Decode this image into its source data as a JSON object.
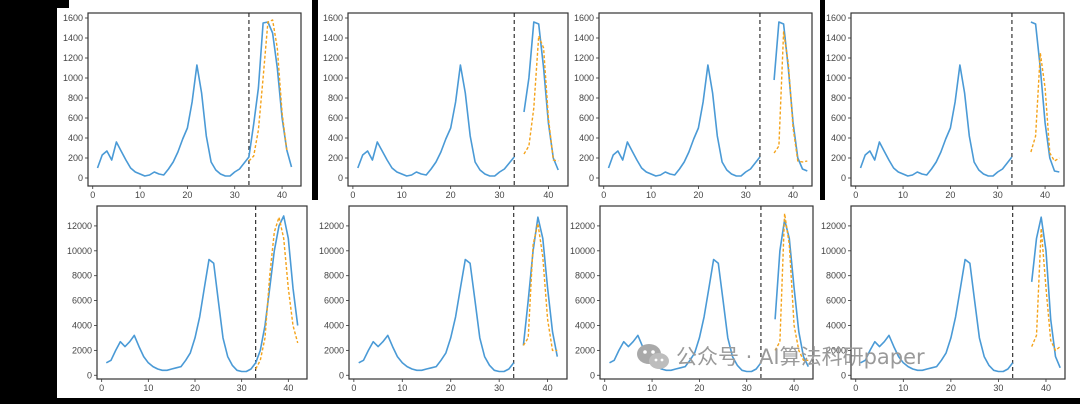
{
  "colors": {
    "actual": "#4a9ad6",
    "forecast": "#f4a31a",
    "cutoff_line": "#222222",
    "frame": "#333333",
    "matte": "#000000"
  },
  "chart_data": [
    {
      "type": "line",
      "panel": "row1-col1",
      "ylim": [
        -80,
        1650
      ],
      "xlim": [
        -1,
        44
      ],
      "xticks": [
        0,
        10,
        20,
        30,
        40
      ],
      "yticks": [
        0,
        200,
        400,
        600,
        800,
        1000,
        1200,
        1400,
        1600
      ],
      "cutoff_x": 33,
      "series": [
        {
          "role": "actual",
          "x": [
            1,
            2,
            3,
            4,
            5,
            6,
            7,
            8,
            9,
            10,
            11,
            12,
            13,
            14,
            15,
            16,
            17,
            18,
            19,
            20,
            21,
            22,
            23,
            24,
            25,
            26,
            27,
            28,
            29,
            30,
            31,
            32,
            33,
            34,
            35,
            36,
            37,
            38,
            39,
            40,
            41,
            42
          ],
          "y": [
            100,
            230,
            270,
            180,
            360,
            270,
            180,
            100,
            60,
            40,
            20,
            30,
            60,
            40,
            30,
            90,
            160,
            260,
            390,
            500,
            760,
            1130,
            850,
            420,
            160,
            80,
            40,
            20,
            20,
            60,
            90,
            150,
            210,
            540,
            900,
            1550,
            1560,
            1450,
            1100,
            600,
            280,
            110
          ]
        },
        {
          "role": "forecast",
          "x": [
            33,
            34,
            35,
            36,
            37,
            38,
            39,
            40,
            41
          ],
          "y": [
            170,
            220,
            480,
            1000,
            1560,
            1580,
            1300,
            650,
            280
          ]
        }
      ]
    },
    {
      "type": "line",
      "panel": "row1-col2",
      "ylim": [
        -80,
        1650
      ],
      "xlim": [
        -1,
        44
      ],
      "xticks": [
        0,
        10,
        20,
        30,
        40
      ],
      "yticks": [
        0,
        200,
        400,
        600,
        800,
        1000,
        1200,
        1400,
        1600
      ],
      "cutoff_x": 33,
      "series": [
        {
          "role": "actual",
          "x": [
            1,
            2,
            3,
            4,
            5,
            6,
            7,
            8,
            9,
            10,
            11,
            12,
            13,
            14,
            15,
            16,
            17,
            18,
            19,
            20,
            21,
            22,
            23,
            24,
            25,
            26,
            27,
            28,
            29,
            30,
            31,
            32,
            33
          ],
          "y": [
            100,
            230,
            270,
            180,
            360,
            270,
            180,
            100,
            60,
            40,
            20,
            30,
            60,
            40,
            30,
            90,
            160,
            260,
            390,
            500,
            760,
            1130,
            850,
            420,
            160,
            80,
            40,
            20,
            20,
            60,
            90,
            150,
            210
          ]
        },
        {
          "role": "actual",
          "x": [
            35,
            36,
            37,
            38,
            39,
            40,
            41,
            42
          ],
          "y": [
            660,
            1000,
            1560,
            1540,
            1100,
            550,
            200,
            80
          ]
        },
        {
          "role": "forecast",
          "x": [
            35,
            36,
            37,
            38,
            39,
            40,
            41,
            42
          ],
          "y": [
            240,
            320,
            700,
            1420,
            1300,
            600,
            180,
            170
          ]
        }
      ]
    },
    {
      "type": "line",
      "panel": "row1-col3",
      "ylim": [
        -80,
        1650
      ],
      "xlim": [
        -1,
        44
      ],
      "xticks": [
        0,
        10,
        20,
        30,
        40
      ],
      "yticks": [
        0,
        200,
        400,
        600,
        800,
        1000,
        1200,
        1400,
        1600
      ],
      "cutoff_x": 33,
      "series": [
        {
          "role": "actual",
          "x": [
            1,
            2,
            3,
            4,
            5,
            6,
            7,
            8,
            9,
            10,
            11,
            12,
            13,
            14,
            15,
            16,
            17,
            18,
            19,
            20,
            21,
            22,
            23,
            24,
            25,
            26,
            27,
            28,
            29,
            30,
            31,
            32,
            33
          ],
          "y": [
            100,
            230,
            270,
            180,
            360,
            270,
            180,
            100,
            60,
            40,
            20,
            30,
            60,
            40,
            30,
            90,
            160,
            260,
            390,
            500,
            760,
            1130,
            850,
            420,
            160,
            80,
            40,
            20,
            20,
            60,
            90,
            150,
            210
          ]
        },
        {
          "role": "actual",
          "x": [
            36,
            37,
            38,
            39,
            40,
            41,
            42,
            43
          ],
          "y": [
            980,
            1560,
            1540,
            1100,
            550,
            200,
            90,
            70
          ]
        },
        {
          "role": "forecast",
          "x": [
            36,
            37,
            38,
            39,
            40,
            41,
            42,
            43
          ],
          "y": [
            250,
            320,
            1460,
            1150,
            500,
            170,
            160,
            170
          ]
        }
      ]
    },
    {
      "type": "line",
      "panel": "row1-col4",
      "ylim": [
        -80,
        1650
      ],
      "xlim": [
        -1,
        44
      ],
      "xticks": [
        0,
        10,
        20,
        30,
        40
      ],
      "yticks": [
        0,
        200,
        400,
        600,
        800,
        1000,
        1200,
        1400,
        1600
      ],
      "cutoff_x": 33,
      "series": [
        {
          "role": "actual",
          "x": [
            1,
            2,
            3,
            4,
            5,
            6,
            7,
            8,
            9,
            10,
            11,
            12,
            13,
            14,
            15,
            16,
            17,
            18,
            19,
            20,
            21,
            22,
            23,
            24,
            25,
            26,
            27,
            28,
            29,
            30,
            31,
            32,
            33
          ],
          "y": [
            100,
            230,
            270,
            180,
            360,
            270,
            180,
            100,
            60,
            40,
            20,
            30,
            60,
            40,
            30,
            90,
            160,
            260,
            390,
            500,
            760,
            1130,
            850,
            420,
            160,
            80,
            40,
            20,
            20,
            60,
            90,
            150,
            210
          ]
        },
        {
          "role": "actual",
          "x": [
            37,
            38,
            39,
            40,
            41,
            42,
            43
          ],
          "y": [
            1560,
            1540,
            1100,
            550,
            200,
            70,
            60
          ]
        },
        {
          "role": "forecast",
          "x": [
            37,
            38,
            39,
            40,
            41,
            42,
            43
          ],
          "y": [
            260,
            420,
            1250,
            900,
            250,
            170,
            200
          ]
        }
      ]
    },
    {
      "type": "line",
      "panel": "row2-col1",
      "ylim": [
        -300,
        13600
      ],
      "xlim": [
        -1,
        44
      ],
      "xticks": [
        0,
        10,
        20,
        30,
        40
      ],
      "yticks": [
        0,
        2000,
        4000,
        6000,
        8000,
        10000,
        12000
      ],
      "cutoff_x": 33,
      "series": [
        {
          "role": "actual",
          "x": [
            1,
            2,
            3,
            4,
            5,
            6,
            7,
            8,
            9,
            10,
            11,
            12,
            13,
            14,
            15,
            16,
            17,
            18,
            19,
            20,
            21,
            22,
            23,
            24,
            25,
            26,
            27,
            28,
            29,
            30,
            31,
            32,
            33,
            34,
            35,
            36,
            37,
            38,
            39,
            40,
            41,
            42
          ],
          "y": [
            1000,
            1200,
            2000,
            2700,
            2300,
            2700,
            3200,
            2300,
            1500,
            1000,
            700,
            500,
            400,
            400,
            500,
            600,
            700,
            1200,
            1800,
            3000,
            4700,
            7000,
            9300,
            9000,
            6000,
            3000,
            1500,
            800,
            400,
            300,
            300,
            500,
            1000,
            2000,
            4000,
            7000,
            10000,
            12000,
            12800,
            11000,
            7000,
            4000
          ]
        },
        {
          "role": "forecast",
          "x": [
            33,
            34,
            35,
            36,
            37,
            38,
            39,
            40,
            41,
            42
          ],
          "y": [
            500,
            1200,
            3000,
            8000,
            11500,
            12700,
            11000,
            7000,
            4000,
            2600
          ]
        }
      ]
    },
    {
      "type": "line",
      "panel": "row2-col2",
      "ylim": [
        -300,
        13600
      ],
      "xlim": [
        -1,
        44
      ],
      "xticks": [
        0,
        10,
        20,
        30,
        40
      ],
      "yticks": [
        0,
        2000,
        4000,
        6000,
        8000,
        10000,
        12000
      ],
      "cutoff_x": 33,
      "series": [
        {
          "role": "actual",
          "x": [
            1,
            2,
            3,
            4,
            5,
            6,
            7,
            8,
            9,
            10,
            11,
            12,
            13,
            14,
            15,
            16,
            17,
            18,
            19,
            20,
            21,
            22,
            23,
            24,
            25,
            26,
            27,
            28,
            29,
            30,
            31,
            32,
            33
          ],
          "y": [
            1000,
            1200,
            2000,
            2700,
            2300,
            2700,
            3200,
            2300,
            1500,
            1000,
            700,
            500,
            400,
            400,
            500,
            600,
            700,
            1200,
            1800,
            3000,
            4700,
            7000,
            9300,
            9000,
            6000,
            3000,
            1500,
            800,
            400,
            300,
            300,
            500,
            1000
          ]
        },
        {
          "role": "actual",
          "x": [
            35,
            36,
            37,
            38,
            39,
            40,
            41,
            42
          ],
          "y": [
            2400,
            6000,
            10000,
            12700,
            11000,
            7000,
            3500,
            1500
          ]
        },
        {
          "role": "forecast",
          "x": [
            35,
            36,
            37,
            38,
            39,
            40,
            41,
            42
          ],
          "y": [
            2400,
            3000,
            10500,
            12200,
            9500,
            4500,
            2000,
            2000
          ]
        }
      ]
    },
    {
      "type": "line",
      "panel": "row2-col3",
      "ylim": [
        -300,
        13600
      ],
      "xlim": [
        -1,
        44
      ],
      "xticks": [
        0,
        10,
        20,
        30,
        40
      ],
      "yticks": [
        0,
        2000,
        4000,
        6000,
        8000,
        10000,
        12000
      ],
      "cutoff_x": 33,
      "series": [
        {
          "role": "actual",
          "x": [
            1,
            2,
            3,
            4,
            5,
            6,
            7,
            8,
            9,
            10,
            11,
            12,
            13,
            14,
            15,
            16,
            17,
            18,
            19,
            20,
            21,
            22,
            23,
            24,
            25,
            26,
            27,
            28,
            29,
            30,
            31,
            32,
            33
          ],
          "y": [
            1000,
            1200,
            2000,
            2700,
            2300,
            2700,
            3200,
            2300,
            1500,
            1000,
            700,
            500,
            400,
            400,
            500,
            600,
            700,
            1200,
            1800,
            3000,
            4700,
            7000,
            9300,
            9000,
            6000,
            3000,
            1500,
            800,
            400,
            300,
            300,
            500,
            1000
          ]
        },
        {
          "role": "actual",
          "x": [
            36,
            37,
            38,
            39,
            40,
            41,
            42,
            43
          ],
          "y": [
            4500,
            10000,
            12500,
            11000,
            7000,
            3500,
            1500,
            700
          ]
        },
        {
          "role": "forecast",
          "x": [
            36,
            37,
            38,
            39,
            40,
            41,
            42,
            43
          ],
          "y": [
            2000,
            2700,
            13000,
            10500,
            4000,
            2000,
            1200,
            1200
          ]
        }
      ]
    },
    {
      "type": "line",
      "panel": "row2-col4",
      "ylim": [
        -300,
        13600
      ],
      "xlim": [
        -1,
        44
      ],
      "xticks": [
        0,
        10,
        20,
        30,
        40
      ],
      "yticks": [
        0,
        2000,
        4000,
        6000,
        8000,
        10000,
        12000
      ],
      "cutoff_x": 33,
      "series": [
        {
          "role": "actual",
          "x": [
            1,
            2,
            3,
            4,
            5,
            6,
            7,
            8,
            9,
            10,
            11,
            12,
            13,
            14,
            15,
            16,
            17,
            18,
            19,
            20,
            21,
            22,
            23,
            24,
            25,
            26,
            27,
            28,
            29,
            30,
            31,
            32,
            33
          ],
          "y": [
            1000,
            1200,
            2000,
            2700,
            2300,
            2700,
            3200,
            2300,
            1500,
            1000,
            700,
            500,
            400,
            400,
            500,
            600,
            700,
            1200,
            1800,
            3000,
            4700,
            7000,
            9300,
            9000,
            6000,
            3000,
            1500,
            800,
            400,
            300,
            300,
            500,
            1000
          ]
        },
        {
          "role": "actual",
          "x": [
            37,
            38,
            39,
            40,
            41,
            42,
            43
          ],
          "y": [
            7500,
            11000,
            12700,
            10000,
            4500,
            1500,
            600
          ]
        },
        {
          "role": "forecast",
          "x": [
            37,
            38,
            39,
            40,
            41,
            42,
            43
          ],
          "y": [
            2300,
            3200,
            11800,
            7000,
            2800,
            2000,
            2300
          ]
        }
      ]
    }
  ],
  "watermark": {
    "icon": "wechat-icon",
    "text": "公众号 · AI算法科研paper"
  }
}
